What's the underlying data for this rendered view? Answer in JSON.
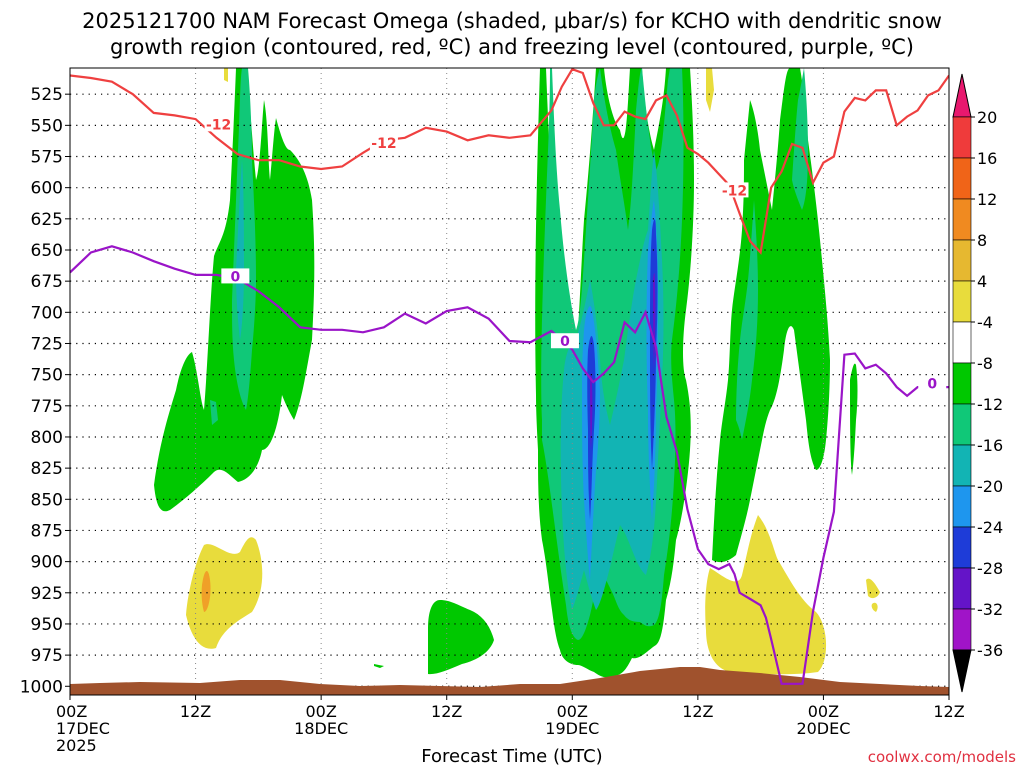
{
  "title_line1": "2025121700 NAM Forecast Omega (shaded, μbar/s) for KCHO with dendritic snow",
  "title_line2": "growth region (contoured, red, ºC) and freezing level (contoured, purple, ºC)",
  "chart_data": {
    "type": "heatmap",
    "y_levels": [
      525,
      550,
      575,
      600,
      625,
      650,
      675,
      700,
      725,
      750,
      775,
      800,
      825,
      850,
      875,
      900,
      925,
      950,
      975,
      1000
    ],
    "ylim": [
      504,
      1007
    ],
    "x_ticks": [
      {
        "hour": 0,
        "l1": "00Z",
        "l2": "17DEC",
        "l3": "2025"
      },
      {
        "hour": 12,
        "l1": "12Z",
        "l2": "",
        "l3": ""
      },
      {
        "hour": 24,
        "l1": "00Z",
        "l2": "18DEC",
        "l3": ""
      },
      {
        "hour": 36,
        "l1": "12Z",
        "l2": "",
        "l3": ""
      },
      {
        "hour": 48,
        "l1": "00Z",
        "l2": "19DEC",
        "l3": ""
      },
      {
        "hour": 60,
        "l1": "12Z",
        "l2": "",
        "l3": ""
      },
      {
        "hour": 72,
        "l1": "00Z",
        "l2": "20DEC",
        "l3": ""
      },
      {
        "hour": 84,
        "l1": "12Z",
        "l2": "",
        "l3": ""
      }
    ],
    "xlim": [
      0,
      84
    ],
    "xlabel": "Forecast Time (UTC)",
    "colorbar": {
      "labels": [
        "20",
        "16",
        "12",
        "8",
        "4",
        "-4",
        "-8",
        "-12",
        "-16",
        "-20",
        "-24",
        "-28",
        "-32",
        "-36"
      ],
      "colors": [
        "#e8186e",
        "#ef3b3b",
        "#f06418",
        "#f08a20",
        "#e6b830",
        "#e8dc3c",
        "#ffffff",
        "#00c800",
        "#10c878",
        "#12b4b4",
        "#1e96ee",
        "#1e3cd8",
        "#6414c8",
        "#a014c8",
        "#aaaaaa",
        "#000000"
      ]
    },
    "contour_labels": {
      "dgz_label": "-12",
      "freezing_label": "0"
    },
    "series": [
      {
        "name": "freezing_level_0C",
        "color": "#9a14c8",
        "x": [
          0,
          2,
          4,
          6,
          8,
          10,
          12,
          14,
          16,
          18,
          20,
          22,
          24,
          26,
          28,
          30,
          32,
          34,
          36,
          38,
          40,
          42,
          44,
          46,
          47,
          48,
          49,
          50,
          51,
          52,
          53,
          54,
          55,
          56,
          57,
          58,
          59,
          60,
          61,
          62,
          63,
          63.5,
          64,
          65,
          66,
          66.5,
          67,
          68,
          69,
          70,
          71,
          72,
          73,
          74,
          75,
          76,
          77,
          78,
          79,
          80,
          81,
          82,
          83,
          84
        ],
        "p": [
          668,
          652,
          647,
          652,
          659,
          665,
          670,
          670,
          673,
          683,
          696,
          712,
          714,
          714,
          716,
          712,
          701,
          709,
          699,
          696,
          705,
          723,
          724,
          715,
          722,
          730,
          745,
          756,
          749,
          740,
          708,
          716,
          700,
          728,
          784,
          812,
          858,
          890,
          902,
          906,
          902,
          910,
          925,
          930,
          935,
          945,
          962,
          998,
          998,
          998,
          940,
          897,
          860,
          734,
          733,
          745,
          742,
          749,
          760,
          767,
          760,
          760,
          760,
          760
        ]
      },
      {
        "name": "dgz_-12C",
        "color": "#ef4040",
        "x": [
          0,
          2,
          4,
          6,
          8,
          10,
          12,
          14,
          16,
          18,
          20,
          22,
          24,
          26,
          28,
          30,
          32,
          34,
          36,
          38,
          40,
          42,
          44,
          46,
          47,
          48,
          49,
          50,
          51,
          52,
          53,
          54,
          55,
          56,
          57,
          58,
          59,
          60,
          61,
          62,
          63,
          64,
          65,
          66,
          67,
          68,
          69,
          70,
          71,
          72,
          73,
          74,
          75,
          76,
          77,
          78,
          79,
          80,
          81,
          82,
          83,
          84
        ],
        "p": [
          510,
          512,
          515,
          525,
          540,
          542,
          545,
          560,
          573,
          578,
          578,
          583,
          585,
          583,
          572,
          562,
          560,
          552,
          555,
          562,
          558,
          560,
          558,
          538,
          519,
          505,
          508,
          532,
          550,
          550,
          539,
          543,
          545,
          530,
          526,
          542,
          568,
          573,
          580,
          589,
          598,
          621,
          643,
          652,
          600,
          587,
          565,
          568,
          596,
          580,
          575,
          539,
          528,
          530,
          522,
          522,
          550,
          543,
          538,
          526,
          522,
          510
        ]
      }
    ]
  },
  "credit": "coolwx.com/models"
}
